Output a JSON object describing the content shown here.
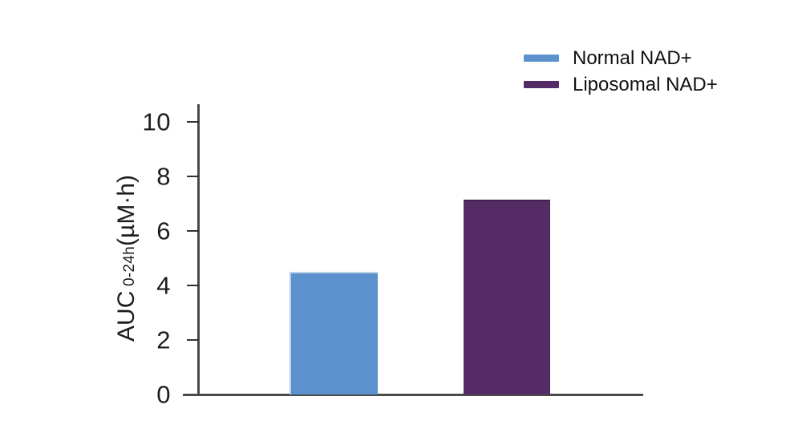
{
  "chart_data": {
    "type": "bar",
    "title": "",
    "ylabel": "AUC 0-24h(µM·h)",
    "ylabel_parts": {
      "main": "AUC",
      "sub": " 0-24h",
      "rest": "(µM·h)"
    },
    "xlabel": "",
    "ylim": [
      0,
      10
    ],
    "yticks": [
      0,
      2,
      4,
      6,
      8,
      10
    ],
    "categories": [
      "Normal NAD+",
      "Liposomal NAD+"
    ],
    "series": [
      {
        "name": "Normal NAD+",
        "value": 4.45,
        "color": "#5b92cd",
        "edge_color": "#b9cfe9"
      },
      {
        "name": "Liposomal NAD+",
        "value": 7.1,
        "color": "#542b65",
        "edge_color": "#40204e"
      }
    ],
    "legend_position": "top-right",
    "grid": false,
    "axis_color": "#4a4a4a",
    "tick_color": "#333333",
    "text_color": "#1d1d1d",
    "background_color": "#ffffff"
  }
}
